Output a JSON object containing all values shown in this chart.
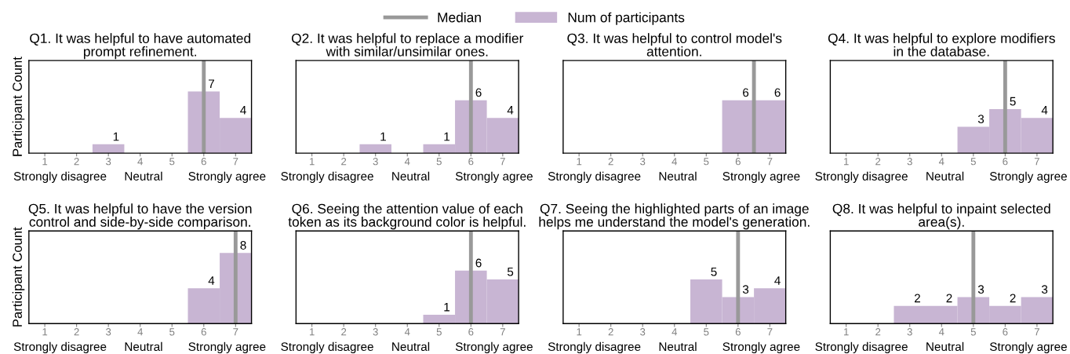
{
  "chart_data": [
    {
      "type": "bar",
      "title": "Q1. It was helpful to have automated\nprompt refinement.",
      "ylabel": "Participant Count",
      "x": [
        1,
        2,
        3,
        4,
        5,
        6,
        7
      ],
      "xlim": [
        0.5,
        7.5
      ],
      "xticks": [
        1,
        2,
        3,
        4,
        5,
        6,
        7
      ],
      "annotations": [
        "Strongly disagree",
        "Neutral",
        "Strongly agree"
      ],
      "ylim": [
        0,
        10.5
      ],
      "tick_labels": "x",
      "legend": "top",
      "series": [
        {
          "name": "Num of participants",
          "color": "#c8b5d3",
          "values": [
            0,
            0,
            1,
            0,
            0,
            7,
            4
          ],
          "value_labels": [
            null,
            null,
            "1",
            null,
            null,
            "7",
            "4"
          ]
        }
      ],
      "ref_lines": [
        {
          "axis": "x",
          "value": 6,
          "label": "Median",
          "color": "#999999"
        }
      ]
    },
    {
      "type": "bar",
      "title": "Q2. It was helpful to replace a modifier\nwith similar/unsimilar ones.",
      "x": [
        1,
        2,
        3,
        4,
        5,
        6,
        7
      ],
      "xlim": [
        0.5,
        7.5
      ],
      "xticks": [
        1,
        2,
        3,
        4,
        5,
        6,
        7
      ],
      "annotations": [
        "Strongly disagree",
        "Neutral",
        "Strongly agree"
      ],
      "ylim": [
        0,
        10.5
      ],
      "tick_labels": "x",
      "series": [
        {
          "color": "#c8b5d3",
          "values": [
            0,
            0,
            1,
            0,
            1,
            6,
            4
          ],
          "value_labels": [
            null,
            null,
            "1",
            null,
            "1",
            "6",
            "4"
          ]
        }
      ],
      "ref_lines": [
        {
          "axis": "x",
          "value": 6,
          "color": "#999999"
        }
      ]
    },
    {
      "type": "bar",
      "title": "Q3. It was helpful to control model's\nattention.",
      "x": [
        1,
        2,
        3,
        4,
        5,
        6,
        7
      ],
      "xlim": [
        0.5,
        7.5
      ],
      "xticks": [
        1,
        2,
        3,
        4,
        5,
        6,
        7
      ],
      "annotations": [
        "Strongly disagree",
        "Neutral",
        "Strongly agree"
      ],
      "ylim": [
        0,
        10.5
      ],
      "tick_labels": "x",
      "series": [
        {
          "color": "#c8b5d3",
          "values": [
            0,
            0,
            0,
            0,
            0,
            6,
            6
          ],
          "value_labels": [
            null,
            null,
            null,
            null,
            null,
            "6",
            "6"
          ]
        }
      ],
      "ref_lines": [
        {
          "axis": "x",
          "value": 6.5,
          "color": "#999999"
        }
      ]
    },
    {
      "type": "bar",
      "title": "Q4. It was helpful to explore modifiers\nin the database.",
      "x": [
        1,
        2,
        3,
        4,
        5,
        6,
        7
      ],
      "xlim": [
        0.5,
        7.5
      ],
      "xticks": [
        1,
        2,
        3,
        4,
        5,
        6,
        7
      ],
      "annotations": [
        "Strongly disagree",
        "Neutral",
        "Strongly agree"
      ],
      "ylim": [
        0,
        10.5
      ],
      "tick_labels": "x",
      "series": [
        {
          "color": "#c8b5d3",
          "values": [
            0,
            0,
            0,
            0,
            3,
            5,
            4
          ],
          "value_labels": [
            null,
            null,
            null,
            null,
            "3",
            "5",
            "4"
          ]
        }
      ],
      "ref_lines": [
        {
          "axis": "x",
          "value": 6,
          "color": "#999999"
        }
      ]
    },
    {
      "type": "bar",
      "title": "Q5. It was helpful to have the version\ncontrol and side-by-side comparison.",
      "ylabel": "Participant Count",
      "x": [
        1,
        2,
        3,
        4,
        5,
        6,
        7
      ],
      "xlim": [
        0.5,
        7.5
      ],
      "xticks": [
        1,
        2,
        3,
        4,
        5,
        6,
        7
      ],
      "annotations": [
        "Strongly disagree",
        "Neutral",
        "Strongly agree"
      ],
      "ylim": [
        0,
        10.5
      ],
      "tick_labels": "x",
      "series": [
        {
          "color": "#c8b5d3",
          "values": [
            0,
            0,
            0,
            0,
            0,
            4,
            8
          ],
          "value_labels": [
            null,
            null,
            null,
            null,
            null,
            "4",
            "8"
          ]
        }
      ],
      "ref_lines": [
        {
          "axis": "x",
          "value": 7,
          "color": "#999999"
        }
      ]
    },
    {
      "type": "bar",
      "title": "Q6. Seeing the attention value of each\ntoken as its background color is helpful.",
      "x": [
        1,
        2,
        3,
        4,
        5,
        6,
        7
      ],
      "xlim": [
        0.5,
        7.5
      ],
      "xticks": [
        1,
        2,
        3,
        4,
        5,
        6,
        7
      ],
      "annotations": [
        "Strongly disagree",
        "Neutral",
        "Strongly agree"
      ],
      "ylim": [
        0,
        10.5
      ],
      "tick_labels": "x",
      "series": [
        {
          "color": "#c8b5d3",
          "values": [
            0,
            0,
            0,
            0,
            1,
            6,
            5
          ],
          "value_labels": [
            null,
            null,
            null,
            null,
            "1",
            "6",
            "5"
          ]
        }
      ],
      "ref_lines": [
        {
          "axis": "x",
          "value": 6,
          "color": "#999999"
        }
      ]
    },
    {
      "type": "bar",
      "title": "Q7. Seeing the highlighted parts of an image\nhelps me understand the model's generation.",
      "x": [
        1,
        2,
        3,
        4,
        5,
        6,
        7
      ],
      "xlim": [
        0.5,
        7.5
      ],
      "xticks": [
        1,
        2,
        3,
        4,
        5,
        6,
        7
      ],
      "annotations": [
        "Strongly disagree",
        "Neutral",
        "Strongly agree"
      ],
      "ylim": [
        0,
        10.5
      ],
      "tick_labels": "x",
      "series": [
        {
          "color": "#c8b5d3",
          "values": [
            0,
            0,
            0,
            0,
            5,
            3,
            4
          ],
          "value_labels": [
            null,
            null,
            null,
            null,
            "5",
            "3",
            "4"
          ]
        }
      ],
      "ref_lines": [
        {
          "axis": "x",
          "value": 6,
          "color": "#999999"
        }
      ]
    },
    {
      "type": "bar",
      "title": "Q8. It was helpful to inpaint selected\narea(s).",
      "x": [
        1,
        2,
        3,
        4,
        5,
        6,
        7
      ],
      "xlim": [
        0.5,
        7.5
      ],
      "xticks": [
        1,
        2,
        3,
        4,
        5,
        6,
        7
      ],
      "annotations": [
        "Strongly disagree",
        "Neutral",
        "Strongly agree"
      ],
      "ylim": [
        0,
        10.5
      ],
      "tick_labels": "x",
      "series": [
        {
          "color": "#c8b5d3",
          "values": [
            0,
            0,
            2,
            2,
            3,
            2,
            3
          ],
          "value_labels": [
            null,
            null,
            "2",
            "2",
            "3",
            "2",
            "3"
          ]
        }
      ],
      "ref_lines": [
        {
          "axis": "x",
          "value": 5,
          "color": "#999999"
        }
      ]
    }
  ]
}
